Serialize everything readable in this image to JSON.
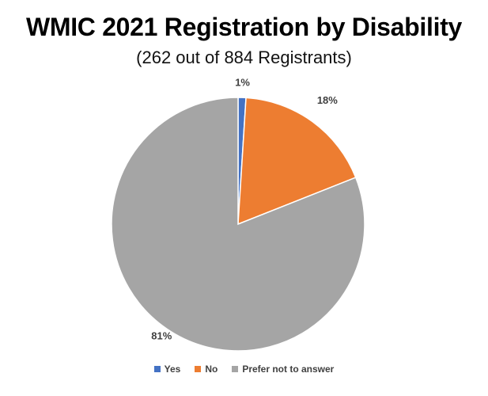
{
  "chart_data": {
    "type": "pie",
    "title": "WMIC 2021 Registration by Disability",
    "subtitle": "(262 out of 884 Registrants)",
    "categories": [
      "Yes",
      "No",
      "Prefer not to answer"
    ],
    "values": [
      1,
      18,
      81
    ],
    "data_labels": [
      "1%",
      "18%",
      "81%"
    ],
    "colors": [
      "#4472C4",
      "#ED7D31",
      "#A5A5A5"
    ],
    "legend_position": "bottom"
  }
}
